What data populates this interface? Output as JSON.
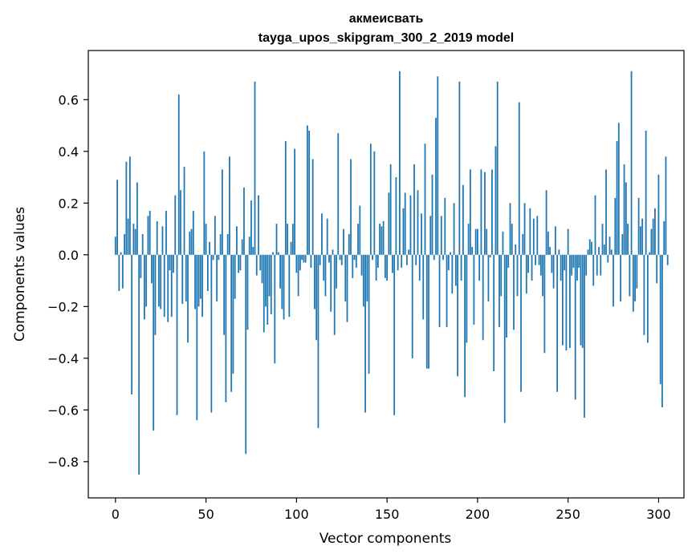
{
  "chart_data": {
    "type": "bar",
    "title_line1": "акмеисвать",
    "title_line2": "tayga_upos_skipgram_300_2_2019 model",
    "xlabel": "Vector components",
    "ylabel": "Components values",
    "xlim": [
      -15,
      314
    ],
    "ylim": [
      -0.94,
      0.79
    ],
    "xticks": [
      0,
      50,
      100,
      150,
      200,
      250,
      300
    ],
    "xtick_labels": [
      "0",
      "50",
      "100",
      "150",
      "200",
      "250",
      "300"
    ],
    "yticks": [
      -0.8,
      -0.6,
      -0.4,
      -0.2,
      0.0,
      0.2,
      0.4,
      0.6
    ],
    "ytick_labels": [
      "−0.8",
      "−0.6",
      "−0.4",
      "−0.2",
      "0.0",
      "0.2",
      "0.4",
      "0.6"
    ],
    "bar_color": "#1f77b4",
    "values": [
      0.07,
      0.29,
      -0.14,
      0.01,
      -0.13,
      0.08,
      0.36,
      0.14,
      0.38,
      -0.54,
      0.12,
      0.1,
      0.28,
      -0.85,
      -0.09,
      0.08,
      -0.25,
      -0.2,
      0.15,
      0.17,
      -0.11,
      -0.68,
      -0.31,
      0.13,
      -0.2,
      -0.21,
      0.11,
      -0.24,
      0.17,
      -0.26,
      -0.06,
      -0.24,
      -0.07,
      0.23,
      -0.62,
      0.62,
      0.25,
      -0.19,
      0.34,
      -0.18,
      -0.34,
      0.09,
      0.1,
      0.17,
      -0.21,
      -0.64,
      -0.2,
      -0.17,
      -0.24,
      0.4,
      0.12,
      -0.14,
      0.05,
      -0.61,
      -0.02,
      0.15,
      -0.18,
      -0.02,
      0.08,
      0.33,
      -0.31,
      -0.57,
      0.08,
      0.38,
      -0.53,
      -0.46,
      -0.17,
      0.11,
      -0.07,
      -0.06,
      0.06,
      0.26,
      -0.77,
      -0.29,
      0.07,
      0.21,
      0.03,
      0.67,
      -0.08,
      0.23,
      -0.06,
      -0.11,
      -0.3,
      -0.2,
      -0.27,
      -0.16,
      -0.23,
      0.01,
      -0.42,
      0.12,
      0.01,
      -0.13,
      -0.21,
      -0.25,
      0.44,
      0.12,
      -0.24,
      0.05,
      0.12,
      0.41,
      -0.07,
      -0.16,
      -0.06,
      -0.02,
      -0.03,
      -0.03,
      0.5,
      0.48,
      -0.05,
      0.37,
      -0.21,
      -0.33,
      -0.67,
      -0.04,
      0.16,
      -0.1,
      -0.16,
      0.14,
      -0.03,
      -0.22,
      0.02,
      -0.31,
      -0.13,
      0.47,
      -0.02,
      -0.04,
      0.1,
      -0.18,
      -0.26,
      0.08,
      0.37,
      -0.09,
      -0.02,
      -0.05,
      0.12,
      0.19,
      -0.08,
      -0.2,
      -0.61,
      -0.18,
      -0.46,
      0.43,
      -0.02,
      0.4,
      -0.1,
      -0.05,
      0.12,
      0.11,
      0.13,
      -0.09,
      -0.1,
      0.24,
      0.35,
      -0.07,
      -0.62,
      0.3,
      -0.06,
      0.71,
      -0.05,
      0.18,
      0.24,
      -0.04,
      0.02,
      0.23,
      -0.4,
      0.35,
      -0.04,
      0.25,
      -0.1,
      0.16,
      -0.25,
      0.43,
      -0.44,
      -0.44,
      0.15,
      0.31,
      -0.02,
      0.53,
      0.69,
      -0.28,
      0.15,
      -0.02,
      0.22,
      -0.28,
      -0.06,
      0.01,
      -0.15,
      0.2,
      -0.12,
      -0.47,
      0.67,
      -0.1,
      0.27,
      -0.55,
      -0.34,
      0.12,
      0.33,
      0.03,
      -0.27,
      0.1,
      0.1,
      -0.1,
      0.33,
      -0.33,
      0.32,
      0.1,
      -0.18,
      -0.01,
      0.33,
      -0.45,
      0.42,
      0.67,
      -0.28,
      -0.16,
      0.09,
      -0.65,
      -0.32,
      -0.05,
      0.2,
      0.12,
      -0.29,
      0.04,
      -0.16,
      0.59,
      -0.53,
      0.08,
      0.2,
      -0.15,
      -0.07,
      0.18,
      -0.1,
      0.14,
      -0.04,
      0.15,
      -0.04,
      -0.08,
      -0.16,
      -0.38,
      0.25,
      0.09,
      0.03,
      -0.07,
      -0.13,
      0.11,
      -0.53,
      0.02,
      -0.1,
      -0.35,
      -0.06,
      -0.37,
      0.1,
      -0.36,
      -0.08,
      -0.05,
      -0.56,
      -0.1,
      -0.05,
      -0.35,
      -0.36,
      -0.63,
      -0.08,
      0.02,
      0.06,
      0.05,
      -0.12,
      0.23,
      -0.08,
      0.03,
      -0.08,
      0.12,
      0.04,
      0.33,
      -0.03,
      0.07,
      0.02,
      -0.2,
      0.22,
      0.44,
      0.51,
      -0.18,
      0.08,
      0.35,
      0.28,
      0.12,
      -0.16,
      0.71,
      -0.22,
      -0.18,
      -0.13,
      0.22,
      0.11,
      0.14,
      -0.31,
      0.48,
      -0.34,
      0.01,
      0.1,
      0.14,
      0.18,
      -0.11,
      0.31,
      -0.5,
      -0.59,
      0.13,
      0.38,
      -0.04
    ]
  }
}
